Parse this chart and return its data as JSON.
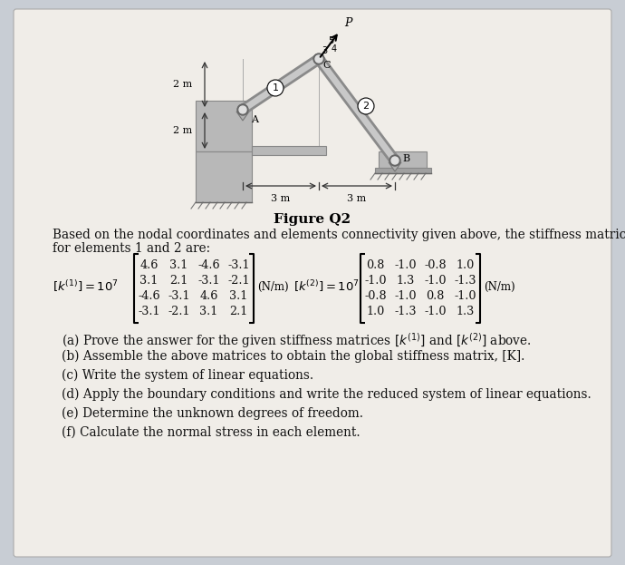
{
  "bg_color": "#c8cdd4",
  "page_bg": "#f0ede8",
  "fig_title": "Figure Q2",
  "matrix1": [
    [
      "4.6",
      "3.1",
      "-4.6",
      "-3.1"
    ],
    [
      "3.1",
      "2.1",
      "-3.1",
      "-2.1"
    ],
    [
      "-4.6",
      "-3.1",
      "4.6",
      "3.1"
    ],
    [
      "-3.1",
      "-2.1",
      "3.1",
      "2.1"
    ]
  ],
  "matrix2": [
    [
      "0.8",
      "-1.0",
      "-0.8",
      "1.0"
    ],
    [
      "-1.0",
      "1.3",
      "-1.0",
      "-1.3"
    ],
    [
      "-0.8",
      "-1.0",
      "0.8",
      "-1.0"
    ],
    [
      "1.0",
      "-1.3",
      "-1.0",
      "1.3"
    ]
  ],
  "intro_line1": "Based on the nodal coordinates and elements connectivity given above, the stiffness matrices",
  "intro_line2": "for elements 1 and 2 are:",
  "q_a": "(a) Prove the answer for the given stiffness matrices $[k^{(1)}]$ and $[k^{(2)}]$ above.",
  "q_b": "(b) Assemble the above matrices to obtain the global stiffness matrix, [K].",
  "q_c": "(c) Write the system of linear equations.",
  "q_d": "(d) Apply the boundary conditions and write the reduced system of linear equations.",
  "q_e": "(e) Determine the unknown degrees of freedom.",
  "q_f": "(f) Calculate the normal stress in each element.",
  "truss_bg": "#e8e4de",
  "bar_dark": "#8a8a8a",
  "bar_light": "#c8c8c8",
  "wall_color": "#b8b8b8",
  "wall_edge": "#888888"
}
